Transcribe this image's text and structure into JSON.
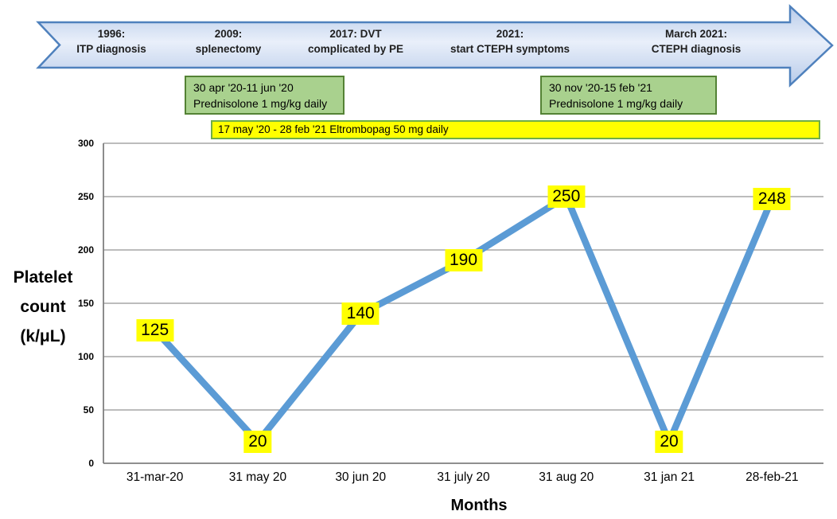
{
  "figure": {
    "timeline": {
      "events": [
        {
          "line1": "1996:",
          "line2": "ITP diagnosis"
        },
        {
          "line1": "2009:",
          "line2": "splenectomy"
        },
        {
          "line1": "2017: DVT",
          "line2": "complicated by PE"
        },
        {
          "line1": "2021:",
          "line2": "start CTEPH symptoms"
        },
        {
          "line1": "March 2021:",
          "line2": "CTEPH diagnosis"
        }
      ]
    },
    "treatments": {
      "prednisolone_1": {
        "period": "30 apr '20-11 jun '20",
        "drug": "Prednisolone 1 mg/kg daily"
      },
      "prednisolone_2": {
        "period": "30 nov '20-15 feb '21",
        "drug": "Prednisolone 1 mg/kg daily"
      },
      "eltrombopag": {
        "label": "17 may '20 - 28 feb '21 Eltrombopag 50 mg daily"
      }
    }
  },
  "chart_data": {
    "type": "line",
    "categories": [
      "31-mar-20",
      "31 may 20",
      "30 jun 20",
      "31 july 20",
      "31 aug 20",
      "31 jan 21",
      "28-feb-21"
    ],
    "values": [
      125,
      20,
      140,
      190,
      250,
      20,
      248
    ],
    "title": "",
    "xlabel": "Months",
    "ylabel_lines": [
      "Platelet",
      "count",
      "(k/μL)"
    ],
    "ylim": [
      0,
      300
    ],
    "ytick_step": 50,
    "grid": true,
    "legend": "none",
    "line_color": "#5b9bd5",
    "point_label_bg": "#ffff00",
    "gridline_color": "#a6a6a6",
    "axis_color": "#7f7f7f"
  },
  "colors": {
    "arrow_fill_dark": "#b7cbe9",
    "arrow_fill_light": "#e9effa",
    "arrow_border": "#4f81bd",
    "green_box_fill": "#a9d18e",
    "green_box_border": "#548235",
    "yellow_fill": "#ffff00",
    "yellow_border": "#70ad47"
  }
}
